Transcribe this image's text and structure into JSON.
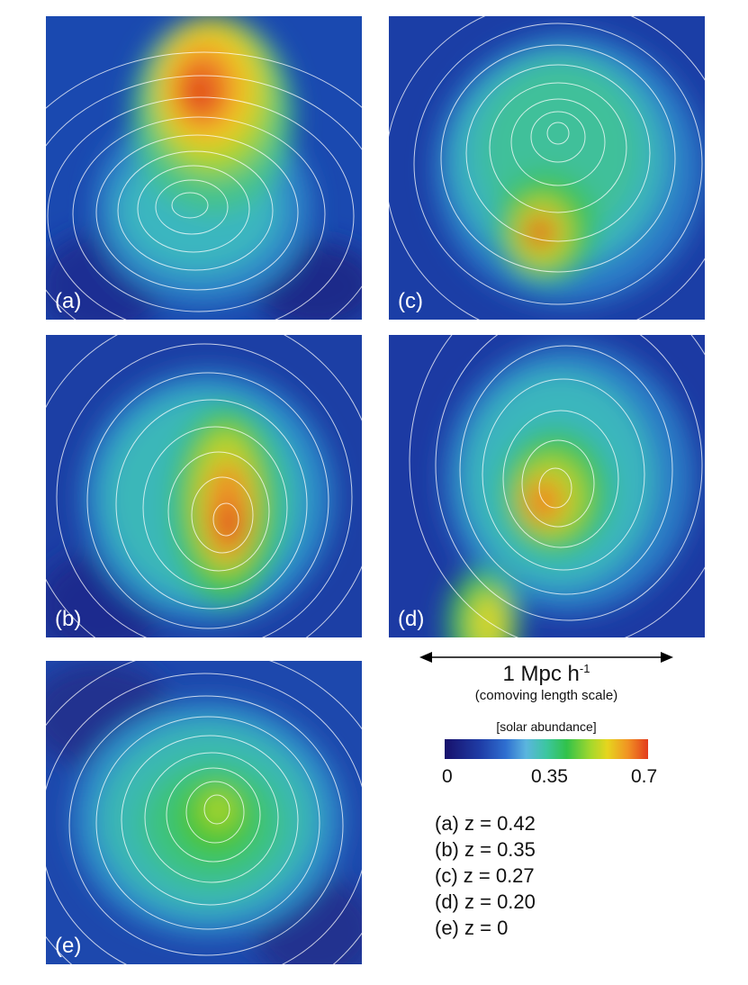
{
  "panels": [
    {
      "id": "a",
      "label": "(a)"
    },
    {
      "id": "b",
      "label": "(b)"
    },
    {
      "id": "c",
      "label": "(c)"
    },
    {
      "id": "d",
      "label": "(d)"
    },
    {
      "id": "e",
      "label": "(e)"
    }
  ],
  "scale": {
    "label_main": "1 Mpc h",
    "label_exp": "-1",
    "sublabel": "(comoving length scale)"
  },
  "colorbar": {
    "title": "[solar abundance]",
    "ticks": [
      "0",
      "0.35",
      "0.7"
    ],
    "min": 0,
    "max": 0.7,
    "colors": [
      "#17106b",
      "#1f3ea8",
      "#5bb5df",
      "#31c24a",
      "#e6d51e",
      "#e33b1d"
    ]
  },
  "legend": [
    "(a) z = 0.42",
    "(b) z = 0.35",
    "(c) z = 0.27",
    "(d) z = 0.20",
    "(e) z = 0"
  ]
}
